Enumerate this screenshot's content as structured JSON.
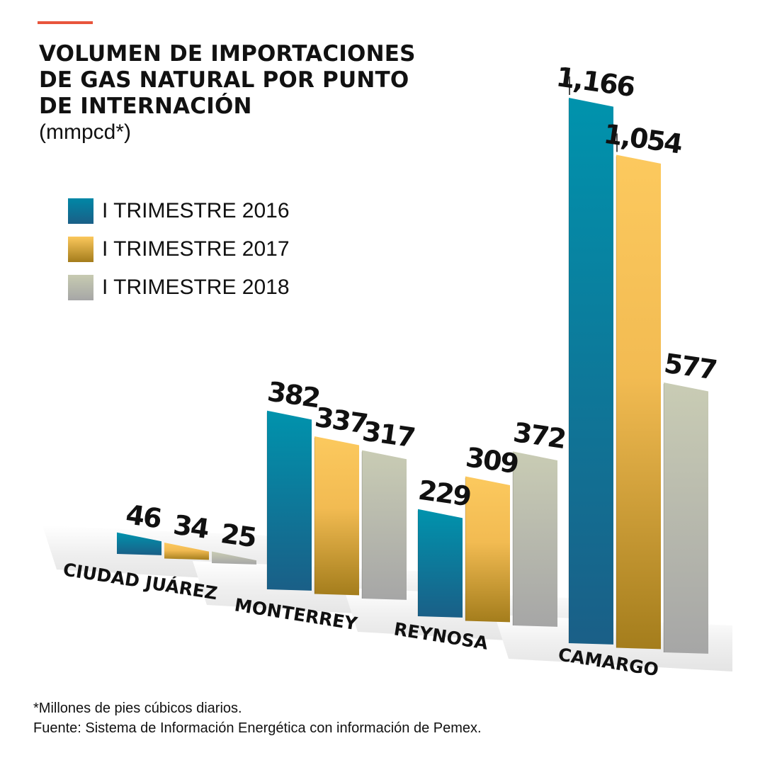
{
  "colors": {
    "accent": "#e8553c",
    "teal": "#0087a6",
    "teal_dark": "#1a5f87",
    "gold": "#fbc75c",
    "gold_dark": "#a47d1c",
    "grey": "#c7cbb1",
    "grey_dark": "#a6a6a6",
    "floor": "#eeeeee"
  },
  "title_lines": [
    "VOLUMEN DE IMPORTACIONES",
    "DE GAS NATURAL POR PUNTO",
    "DE INTERNACIÓN"
  ],
  "unit": "(mmpcd*)",
  "footnotes": [
    "*Millones de pies cúbicos diarios.",
    "Fuente: Sistema de Información Energética con información de Pemex."
  ],
  "chart_data": {
    "type": "bar",
    "title": "VOLUMEN DE IMPORTACIONES DE GAS NATURAL POR PUNTO DE INTERNACIÓN",
    "subtitle": "(mmpcd*)",
    "categories": [
      "CIUDAD JUÁREZ",
      "MONTERREY",
      "REYNOSA",
      "CAMARGO"
    ],
    "series": [
      {
        "name": "I TRIMESTRE 2016",
        "values": [
          46,
          382,
          229,
          1166
        ],
        "labels": [
          "46",
          "382",
          "229",
          "1,166"
        ],
        "color": "#0087a6"
      },
      {
        "name": "I TRIMESTRE 2017",
        "values": [
          34,
          337,
          309,
          1054
        ],
        "labels": [
          "34",
          "337",
          "309",
          "1,054"
        ],
        "color": "#fbc75c"
      },
      {
        "name": "I TRIMESTRE 2018",
        "values": [
          25,
          317,
          372,
          577
        ],
        "labels": [
          "25",
          "317",
          "372",
          "577"
        ],
        "color": "#c7cbb1"
      }
    ],
    "legend_position": "top-left",
    "grid": false,
    "style": "3d-perspective"
  }
}
